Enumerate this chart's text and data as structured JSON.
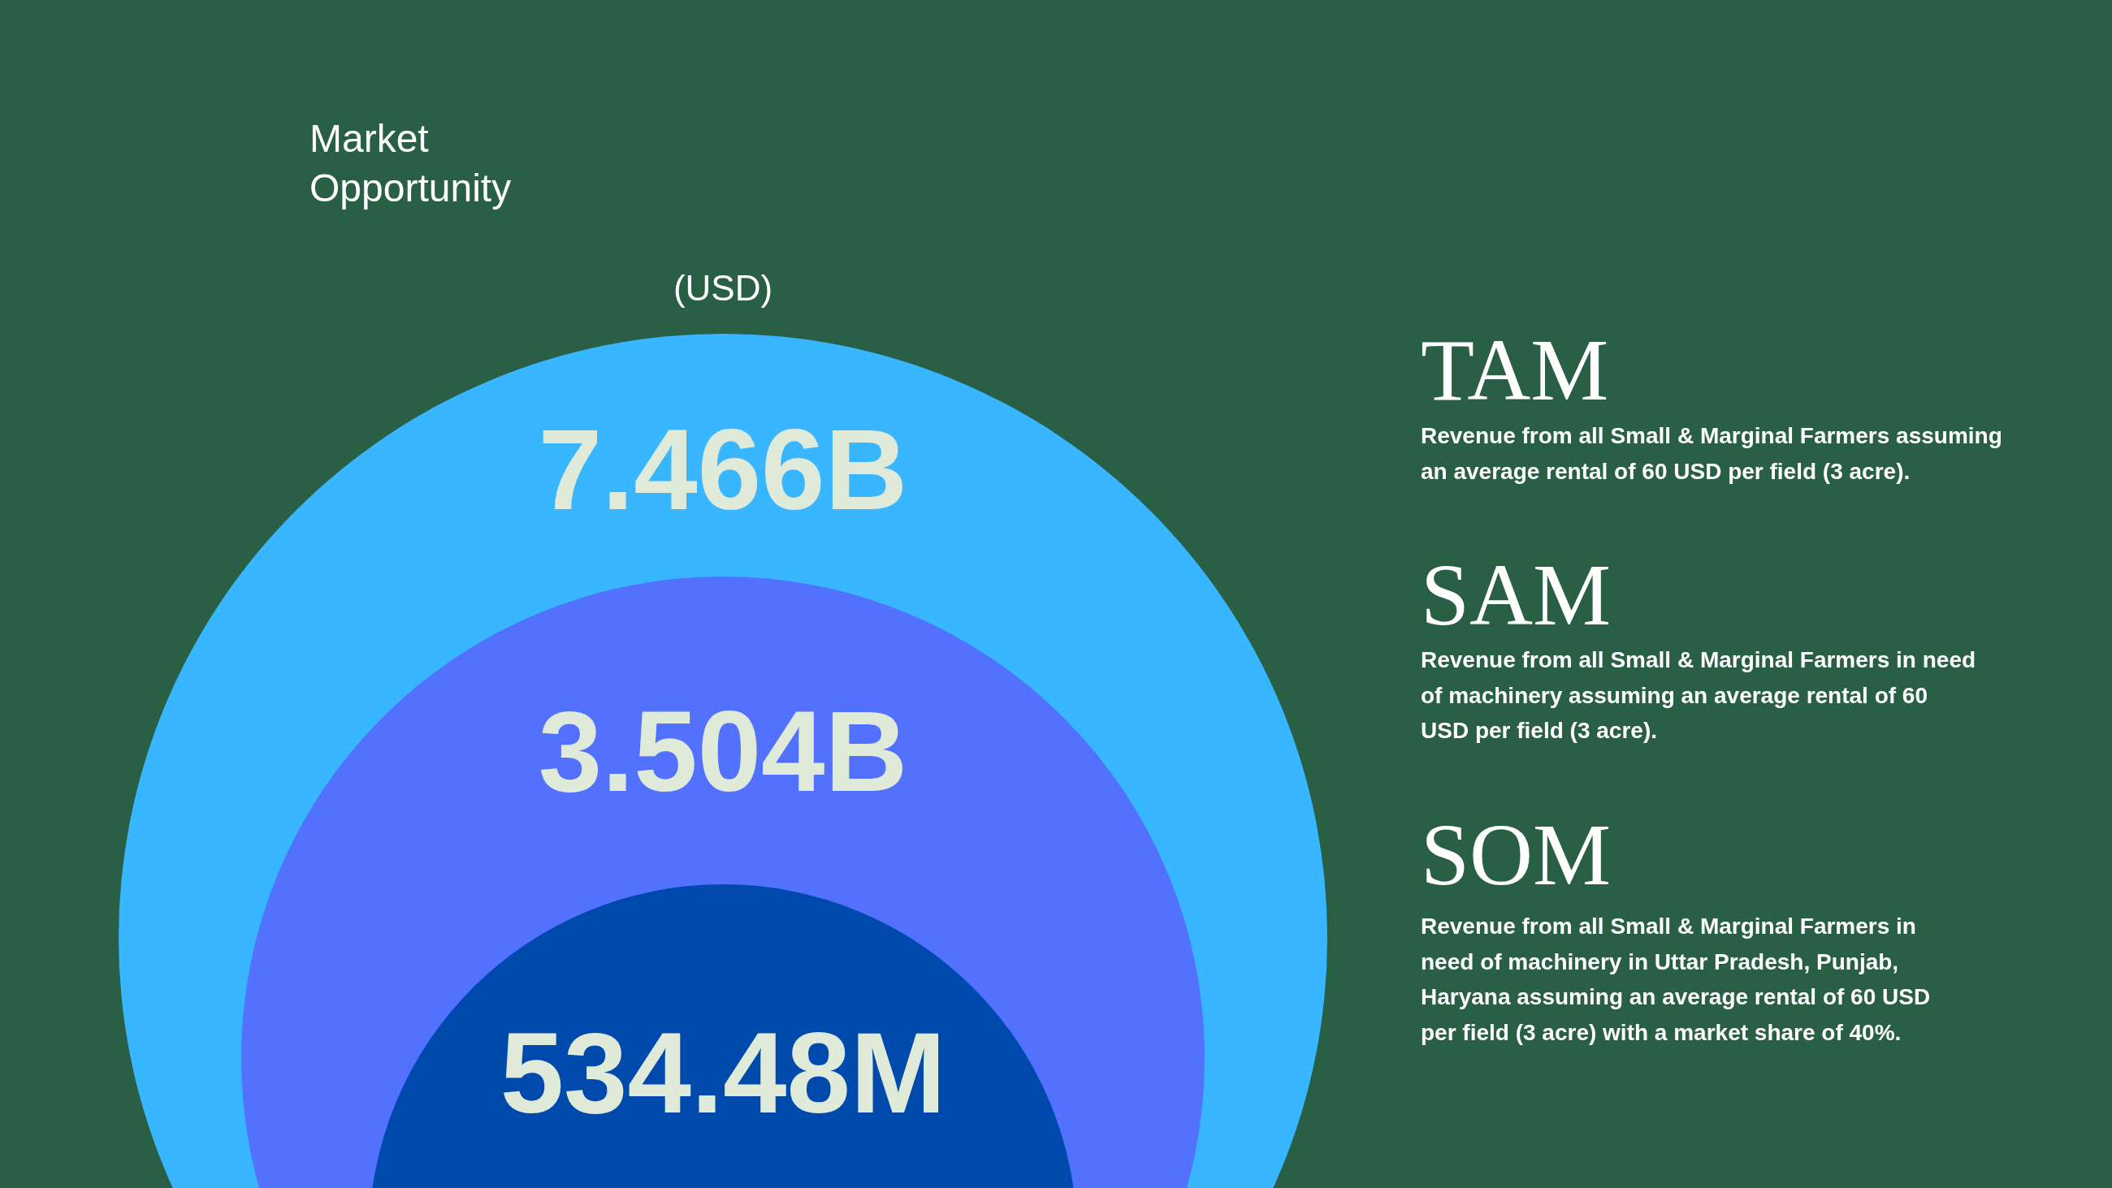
{
  "chart_data": {
    "type": "other",
    "title": "Market Opportunity",
    "subtitle": "(USD)",
    "categories": [
      "TAM",
      "SAM",
      "SOM"
    ],
    "values": [
      7466000000,
      3504000000,
      534480000
    ],
    "value_labels": [
      "7.466B",
      "3.504B",
      "534.48M"
    ],
    "colors": [
      "#38b6ff",
      "#5271ff",
      "#004aad"
    ],
    "annotations": [
      "Revenue from all Small & Marginal Farmers assuming\nan average rental of 60 USD per field (3 acre).",
      "Revenue from all Small & Marginal Farmers in need\nof machinery assuming an average rental of 60\nUSD per field (3 acre).",
      "Revenue from all Small & Marginal Farmers in\nneed of machinery in Uttar Pradesh, Punjab,\nHaryana assuming an average rental of 60 USD\nper field (3 acre) with a market share of 40%."
    ]
  }
}
